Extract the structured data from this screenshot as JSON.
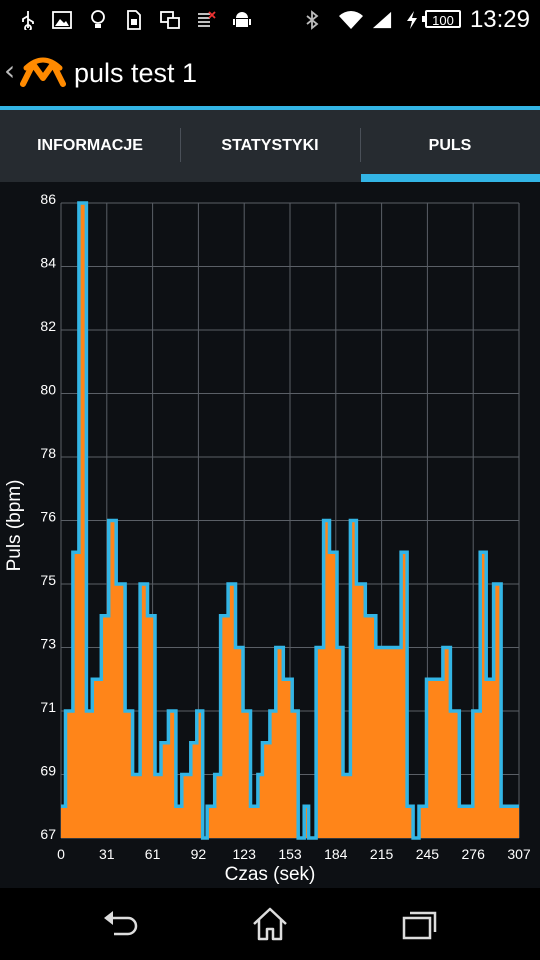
{
  "status_bar": {
    "time": "13:29",
    "battery_level": "100",
    "left_icons": [
      "usb-icon",
      "image-icon",
      "bulb-icon",
      "sim-icon",
      "devices-icon",
      "signal-off-icon",
      "android-icon"
    ],
    "right_icons": [
      "bluetooth-icon",
      "wifi-icon",
      "cell-signal-icon",
      "charging-icon"
    ]
  },
  "action_bar": {
    "title": "puls test 1",
    "logo_color": "#ff8a00"
  },
  "tabs": [
    {
      "label": "INFORMACJE",
      "selected": false
    },
    {
      "label": "STATYSTYKI",
      "selected": false
    },
    {
      "label": "PULS",
      "selected": true
    }
  ],
  "colors": {
    "accent": "#33b5e5",
    "fill": "#ff8519",
    "line": "#33b5e5"
  },
  "chart_data": {
    "type": "area",
    "xlabel": "Czas (sek)",
    "ylabel": "Puls (bpm)",
    "xlim": [
      0,
      307
    ],
    "ylim": [
      67,
      87
    ],
    "x_ticks": [
      "0",
      "31",
      "61",
      "92",
      "123",
      "153",
      "184",
      "215",
      "245",
      "276",
      "307"
    ],
    "y_ticks": [
      "67",
      "69",
      "71",
      "73",
      "75",
      "76",
      "78",
      "80",
      "82",
      "84",
      "86"
    ],
    "grid": true,
    "step": true,
    "series": [
      {
        "x": [
          0,
          3,
          8,
          12,
          17,
          21,
          27,
          32,
          37,
          43,
          48,
          53,
          58,
          63,
          67,
          72,
          77,
          81,
          87,
          91,
          95,
          98,
          103,
          107,
          112,
          117,
          122,
          127,
          132,
          135,
          140,
          144,
          149,
          155,
          159,
          163,
          166,
          171,
          176,
          180,
          185,
          189,
          194,
          198,
          204,
          211,
          216,
          228,
          232,
          236,
          240,
          245,
          250,
          256,
          261,
          267,
          272,
          276,
          281,
          285,
          290,
          295,
          300,
          305
        ],
        "y": [
          68,
          71,
          76,
          87,
          71,
          72,
          74,
          77,
          75,
          71,
          69,
          75,
          74,
          69,
          70,
          71,
          68,
          69,
          70,
          71,
          67,
          68,
          69,
          74,
          75,
          73,
          71,
          68,
          69,
          70,
          71,
          73,
          72,
          71,
          67,
          68,
          67,
          73,
          77,
          76,
          73,
          69,
          77,
          75,
          74,
          73,
          73,
          76,
          68,
          67,
          68,
          72,
          72,
          73,
          71,
          68,
          68,
          71,
          76,
          72,
          75,
          68,
          68,
          68
        ]
      }
    ]
  }
}
